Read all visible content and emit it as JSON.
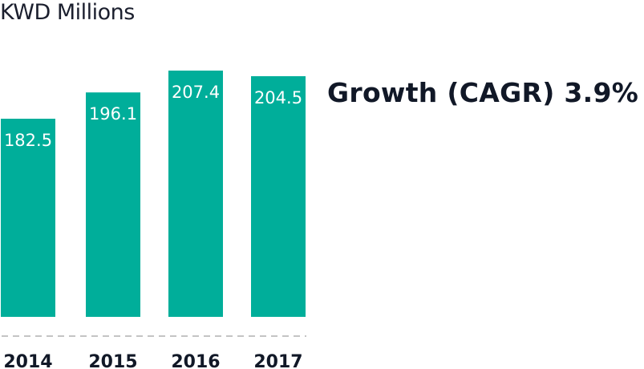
{
  "chart_data": {
    "type": "bar",
    "title": "KWD Millions",
    "annotation": "Growth (CAGR) 3.9%",
    "categories": [
      "2014",
      "2015",
      "2016",
      "2017"
    ],
    "values": [
      182.5,
      196.1,
      207.4,
      204.5
    ],
    "value_labels": [
      "182.5",
      "196.1",
      "207.4",
      "204.5"
    ],
    "xlabel": "",
    "ylabel": "KWD Millions",
    "ylim": [
      80,
      215
    ],
    "grid": false,
    "bar_color": "#00ae9a",
    "baseline_color": "#c4c4c4"
  }
}
